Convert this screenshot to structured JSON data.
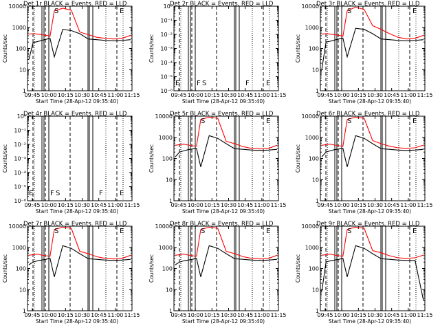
{
  "chart_data": [
    {
      "type": "line",
      "title": "Det 1r BLACK = Events, RED = LLD",
      "xlabel": "Start Time (28-Apr-12 09:35:40)",
      "ylabel": "Counts/sec",
      "yscale": "log",
      "ylim": [
        1,
        10000
      ],
      "yticks": [
        "1",
        "10",
        "100",
        "1000",
        "10000"
      ],
      "xticks": [
        "09:45",
        "10:00",
        "10:15",
        "10:30",
        "10:45",
        "11:00",
        "11:15"
      ],
      "annotations": [
        "S",
        "E"
      ],
      "series": [
        {
          "name": "Events",
          "color": "#000000",
          "x": [
            0,
            0.5,
            1,
            1.5,
            2,
            2.5,
            3,
            4,
            5,
            6,
            7,
            8,
            9,
            10,
            11,
            12
          ],
          "y": [
            30,
            190,
            210,
            240,
            270,
            300,
            40,
            800,
            700,
            500,
            280,
            260,
            240,
            230,
            240,
            260
          ]
        },
        {
          "name": "LLD",
          "color": "#ff0000",
          "x": [
            0,
            0.5,
            1,
            1.5,
            2,
            2.5,
            3,
            4,
            5,
            6,
            7,
            8,
            9,
            10,
            11,
            12
          ],
          "y": [
            480,
            500,
            480,
            450,
            420,
            380,
            6000,
            8000,
            6500,
            600,
            450,
            340,
            300,
            280,
            300,
            420
          ]
        }
      ]
    },
    {
      "type": "line",
      "title": "Det 2r BLACK = Events, RED = LLD",
      "xlabel": "Start Time (28-Apr-12 09:35:40)",
      "ylabel": "Counts/sec",
      "yscale": "log",
      "ylim": [
        1,
        1e-06
      ],
      "yticks": [
        "10⁻⁶",
        "10⁻⁵",
        "10⁻⁴",
        "10⁻³",
        "10⁻²",
        "10⁻¹",
        "10⁰"
      ],
      "xticks": [
        "09:45",
        "10:00",
        "10:15",
        "10:30",
        "10:45",
        "11:00",
        "11:15"
      ],
      "annotations": [
        "E",
        "F",
        "S",
        "F",
        "E"
      ],
      "series": []
    },
    {
      "type": "line",
      "title": "Det 3r BLACK = Events, RED = LLD",
      "xlabel": "Start Time (28-Apr-12 09:35:40)",
      "ylabel": "Counts/sec",
      "yscale": "log",
      "ylim": [
        1,
        10000
      ],
      "yticks": [
        "1",
        "10",
        "100",
        "1000",
        "10000"
      ],
      "xticks": [
        "09:45",
        "10:00",
        "10:15",
        "10:30",
        "10:45",
        "11:00",
        "11:15"
      ],
      "annotations": [
        "S",
        "E"
      ],
      "series": [
        {
          "name": "Events",
          "color": "#000000",
          "x": [
            0,
            0.5,
            1,
            1.5,
            2,
            2.5,
            3,
            4,
            5,
            6,
            7,
            8,
            9,
            10,
            11,
            12
          ],
          "y": [
            10,
            200,
            220,
            250,
            280,
            310,
            40,
            900,
            800,
            500,
            280,
            260,
            240,
            230,
            240,
            260
          ]
        },
        {
          "name": "LLD",
          "color": "#ff0000",
          "x": [
            0,
            0.5,
            1,
            1.5,
            2,
            2.5,
            3,
            4,
            5,
            6,
            7,
            8,
            9,
            10,
            11,
            12
          ],
          "y": [
            480,
            500,
            480,
            450,
            420,
            380,
            6000,
            9000,
            7000,
            1200,
            800,
            500,
            340,
            280,
            300,
            420
          ]
        }
      ]
    },
    {
      "type": "line",
      "title": "Det 4r BLACK = Events, RED = LLD",
      "xlabel": "Start Time (28-Apr-12 09:35:40)",
      "ylabel": "Counts/sec",
      "yscale": "log",
      "ylim": [
        1,
        1e-06
      ],
      "yticks": [
        "10⁻⁶",
        "10⁻⁵",
        "10⁻⁴",
        "10⁻³",
        "10⁻²",
        "10⁻¹",
        "10⁰"
      ],
      "xticks": [
        "09:45",
        "10:00",
        "10:15",
        "10:30",
        "10:45",
        "11:00",
        "11:15"
      ],
      "annotations": [
        "E",
        "F",
        "S",
        "F",
        "E"
      ],
      "series": []
    },
    {
      "type": "line",
      "title": "Det 5r BLACK = Events, RED = LLD",
      "xlabel": "Start Time (28-Apr-12 09:35:40)",
      "ylabel": "Counts/sec",
      "yscale": "log",
      "ylim": [
        1,
        10000
      ],
      "yticks": [
        "1",
        "10",
        "100",
        "1000",
        "10000"
      ],
      "xticks": [
        "09:45",
        "10:00",
        "10:15",
        "10:30",
        "10:45",
        "11:00",
        "11:15"
      ],
      "annotations": [
        "S",
        "E"
      ],
      "series": [
        {
          "name": "Events",
          "color": "#000000",
          "x": [
            0,
            0.5,
            1,
            1.5,
            2,
            2.5,
            3,
            4,
            5,
            6,
            7,
            8,
            9,
            10,
            11,
            12
          ],
          "y": [
            120,
            200,
            230,
            260,
            280,
            300,
            40,
            1200,
            900,
            500,
            290,
            270,
            250,
            240,
            250,
            270
          ]
        },
        {
          "name": "LLD",
          "color": "#ff0000",
          "x": [
            0,
            0.5,
            1,
            1.5,
            2,
            2.5,
            3,
            4,
            5,
            6,
            7,
            8,
            9,
            10,
            11,
            12
          ],
          "y": [
            420,
            450,
            480,
            430,
            400,
            380,
            7000,
            9000,
            8000,
            650,
            500,
            360,
            300,
            280,
            300,
            420
          ]
        }
      ]
    },
    {
      "type": "line",
      "title": "Det 6r BLACK = Events, RED = LLD",
      "xlabel": "Start Time (28-Apr-12 09:35:40)",
      "ylabel": "Counts/sec",
      "yscale": "log",
      "ylim": [
        1,
        10000
      ],
      "yticks": [
        "1",
        "10",
        "100",
        "1000",
        "10000"
      ],
      "xticks": [
        "09:45",
        "10:00",
        "10:15",
        "10:30",
        "10:45",
        "11:00",
        "11:15"
      ],
      "annotations": [
        "S",
        "E"
      ],
      "series": [
        {
          "name": "Events",
          "color": "#000000",
          "x": [
            0,
            0.5,
            1,
            1.5,
            2,
            2.5,
            3,
            4,
            5,
            6,
            7,
            8,
            9,
            10,
            11,
            12
          ],
          "y": [
            120,
            200,
            230,
            260,
            280,
            300,
            40,
            1200,
            900,
            500,
            290,
            270,
            250,
            240,
            250,
            270
          ]
        },
        {
          "name": "LLD",
          "color": "#ff0000",
          "x": [
            0,
            0.5,
            1,
            1.5,
            2,
            2.5,
            3,
            4,
            5,
            6,
            7,
            8,
            9,
            10,
            11,
            12
          ],
          "y": [
            420,
            450,
            480,
            430,
            400,
            380,
            7000,
            9000,
            8000,
            700,
            500,
            380,
            320,
            300,
            320,
            430
          ]
        }
      ]
    },
    {
      "type": "line",
      "title": "Det 7r BLACK = Events, RED = LLD",
      "xlabel": "Start Time (28-Apr-12 09:35:40)",
      "ylabel": "Counts/sec",
      "yscale": "log",
      "ylim": [
        1,
        10000
      ],
      "yticks": [
        "1",
        "10",
        "100",
        "1000",
        "10000"
      ],
      "xticks": [
        "09:45",
        "10:00",
        "10:15",
        "10:30",
        "10:45",
        "11:00",
        "11:15"
      ],
      "annotations": [
        "S",
        "E"
      ],
      "series": [
        {
          "name": "Events",
          "color": "#000000",
          "x": [
            0,
            0.5,
            1,
            1.5,
            2,
            2.5,
            3,
            4,
            5,
            6,
            7,
            8,
            9,
            10,
            11,
            12
          ],
          "y": [
            150,
            200,
            230,
            250,
            270,
            300,
            40,
            1200,
            900,
            500,
            290,
            270,
            250,
            240,
            250,
            270
          ]
        },
        {
          "name": "LLD",
          "color": "#ff0000",
          "x": [
            0,
            0.5,
            1,
            1.5,
            2,
            2.5,
            3,
            4,
            5,
            6,
            7,
            8,
            9,
            10,
            11,
            12
          ],
          "y": [
            420,
            450,
            480,
            430,
            400,
            380,
            7000,
            9000,
            8000,
            650,
            500,
            360,
            300,
            280,
            300,
            420
          ]
        }
      ]
    },
    {
      "type": "line",
      "title": "Det 8r BLACK = Events, RED = LLD",
      "xlabel": "Start Time (28-Apr-12 09:35:40)",
      "ylabel": "Counts/sec",
      "yscale": "log",
      "ylim": [
        1,
        10000
      ],
      "yticks": [
        "1",
        "10",
        "100",
        "1000",
        "10000"
      ],
      "xticks": [
        "09:45",
        "10:00",
        "10:15",
        "10:30",
        "10:45",
        "11:00",
        "11:15"
      ],
      "annotations": [
        "S",
        "E"
      ],
      "series": [
        {
          "name": "Events",
          "color": "#000000",
          "x": [
            0,
            0.5,
            1,
            1.5,
            2,
            2.5,
            3,
            4,
            5,
            6,
            7,
            8,
            9,
            10,
            11,
            12
          ],
          "y": [
            150,
            200,
            230,
            250,
            270,
            300,
            40,
            1200,
            900,
            500,
            290,
            270,
            250,
            240,
            250,
            270
          ]
        },
        {
          "name": "LLD",
          "color": "#ff0000",
          "x": [
            0,
            0.5,
            1,
            1.5,
            2,
            2.5,
            3,
            4,
            5,
            6,
            7,
            8,
            9,
            10,
            11,
            12
          ],
          "y": [
            420,
            450,
            480,
            430,
            400,
            380,
            7000,
            9000,
            8000,
            650,
            500,
            360,
            300,
            280,
            300,
            420
          ]
        }
      ]
    },
    {
      "type": "line",
      "title": "Det 9r BLACK = Events, RED = LLD",
      "xlabel": "Start Time (28-Apr-12 09:35:40)",
      "ylabel": "Counts/sec",
      "yscale": "log",
      "ylim": [
        1,
        10000
      ],
      "yticks": [
        "1",
        "10",
        "100",
        "1000",
        "10000"
      ],
      "xticks": [
        "09:45",
        "10:00",
        "10:15",
        "10:30",
        "10:45",
        "11:00",
        "11:15"
      ],
      "annotations": [
        "S",
        "E"
      ],
      "series": [
        {
          "name": "Events",
          "color": "#000000",
          "x": [
            0,
            0.5,
            1,
            1.5,
            2,
            2.5,
            3,
            4,
            5,
            6,
            7,
            8,
            9,
            10,
            11,
            12
          ],
          "y": [
            8,
            200,
            230,
            250,
            270,
            300,
            40,
            1200,
            900,
            500,
            290,
            270,
            250,
            240,
            240,
            3
          ]
        },
        {
          "name": "LLD",
          "color": "#ff0000",
          "x": [
            0,
            0.5,
            1,
            1.5,
            2,
            2.5,
            3,
            4,
            5,
            6,
            7,
            8,
            9,
            10,
            11,
            12
          ],
          "y": [
            420,
            450,
            480,
            430,
            400,
            380,
            7000,
            9000,
            8000,
            700,
            550,
            400,
            320,
            300,
            320,
            430
          ]
        }
      ]
    }
  ]
}
